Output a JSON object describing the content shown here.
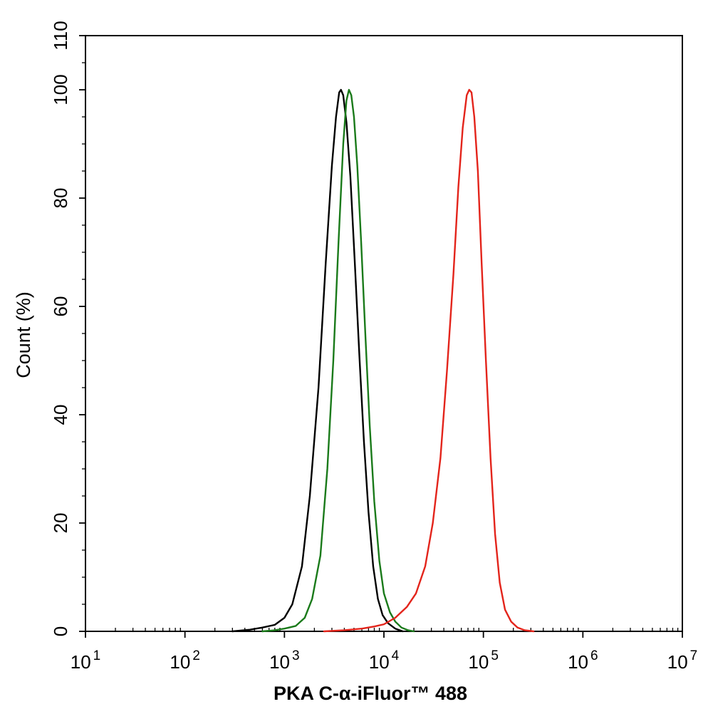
{
  "chart_data": {
    "type": "line",
    "title": "",
    "xlabel": "PKA C-α-iFluor™ 488",
    "ylabel": "Count  (%)",
    "xscale": "log",
    "xlim": [
      10,
      10000000
    ],
    "ylim": [
      0,
      110
    ],
    "grid": false,
    "legend": "none",
    "x_ticks": [
      {
        "value": 10,
        "base": "10",
        "exp": "1"
      },
      {
        "value": 100,
        "base": "10",
        "exp": "2"
      },
      {
        "value": 1000,
        "base": "10",
        "exp": "3"
      },
      {
        "value": 10000,
        "base": "10",
        "exp": "4"
      },
      {
        "value": 100000,
        "base": "10",
        "exp": "5"
      },
      {
        "value": 1000000,
        "base": "10",
        "exp": "6"
      },
      {
        "value": 10000000,
        "base": "10",
        "exp": "7"
      }
    ],
    "y_ticks": [
      {
        "value": 0,
        "label": "0"
      },
      {
        "value": 20,
        "label": "20"
      },
      {
        "value": 40,
        "label": "40"
      },
      {
        "value": 60,
        "label": "60"
      },
      {
        "value": 80,
        "label": "80"
      },
      {
        "value": 100,
        "label": "100"
      },
      {
        "value": 110,
        "label": "110"
      }
    ],
    "series": [
      {
        "color": "#000000",
        "points": [
          [
            300,
            0
          ],
          [
            450,
            0.3
          ],
          [
            600,
            0.7
          ],
          [
            800,
            1.2
          ],
          [
            1000,
            2.5
          ],
          [
            1200,
            5
          ],
          [
            1500,
            12
          ],
          [
            1800,
            25
          ],
          [
            2200,
            45
          ],
          [
            2600,
            68
          ],
          [
            3000,
            86
          ],
          [
            3300,
            95
          ],
          [
            3550,
            99.5
          ],
          [
            3700,
            100
          ],
          [
            3900,
            99
          ],
          [
            4200,
            94
          ],
          [
            4600,
            84
          ],
          [
            5100,
            68
          ],
          [
            5700,
            50
          ],
          [
            6300,
            35
          ],
          [
            7000,
            22
          ],
          [
            7800,
            12
          ],
          [
            8700,
            6
          ],
          [
            9700,
            3
          ],
          [
            11000,
            1.5
          ],
          [
            13000,
            0.5
          ],
          [
            15500,
            0
          ]
        ]
      },
      {
        "color": "#1a7a1a",
        "points": [
          [
            600,
            0
          ],
          [
            800,
            0.2
          ],
          [
            1000,
            0.5
          ],
          [
            1300,
            1
          ],
          [
            1600,
            2.5
          ],
          [
            1900,
            6
          ],
          [
            2300,
            14
          ],
          [
            2700,
            30
          ],
          [
            3100,
            50
          ],
          [
            3500,
            72
          ],
          [
            3900,
            90
          ],
          [
            4200,
            98
          ],
          [
            4450,
            100
          ],
          [
            4700,
            99
          ],
          [
            5000,
            95
          ],
          [
            5400,
            86
          ],
          [
            5900,
            72
          ],
          [
            6500,
            55
          ],
          [
            7200,
            38
          ],
          [
            8000,
            24
          ],
          [
            9000,
            13
          ],
          [
            10000,
            7
          ],
          [
            11500,
            3.5
          ],
          [
            13000,
            1.8
          ],
          [
            15000,
            0.7
          ],
          [
            17500,
            0.2
          ],
          [
            20000,
            0
          ]
        ]
      },
      {
        "color": "#e3241b",
        "points": [
          [
            2500,
            0
          ],
          [
            4000,
            0.2
          ],
          [
            6000,
            0.5
          ],
          [
            8000,
            0.9
          ],
          [
            10000,
            1.3
          ],
          [
            13000,
            2.5
          ],
          [
            17000,
            4.5
          ],
          [
            21000,
            7
          ],
          [
            26000,
            12
          ],
          [
            31000,
            20
          ],
          [
            37000,
            32
          ],
          [
            43000,
            48
          ],
          [
            50000,
            66
          ],
          [
            56000,
            82
          ],
          [
            62000,
            93
          ],
          [
            68000,
            99
          ],
          [
            72000,
            100
          ],
          [
            76000,
            99.5
          ],
          [
            81000,
            95
          ],
          [
            88000,
            85
          ],
          [
            96000,
            68
          ],
          [
            106000,
            50
          ],
          [
            118000,
            32
          ],
          [
            131000,
            18
          ],
          [
            146000,
            9
          ],
          [
            165000,
            4
          ],
          [
            190000,
            1.8
          ],
          [
            220000,
            0.7
          ],
          [
            260000,
            0.2
          ],
          [
            320000,
            0
          ]
        ]
      }
    ]
  }
}
